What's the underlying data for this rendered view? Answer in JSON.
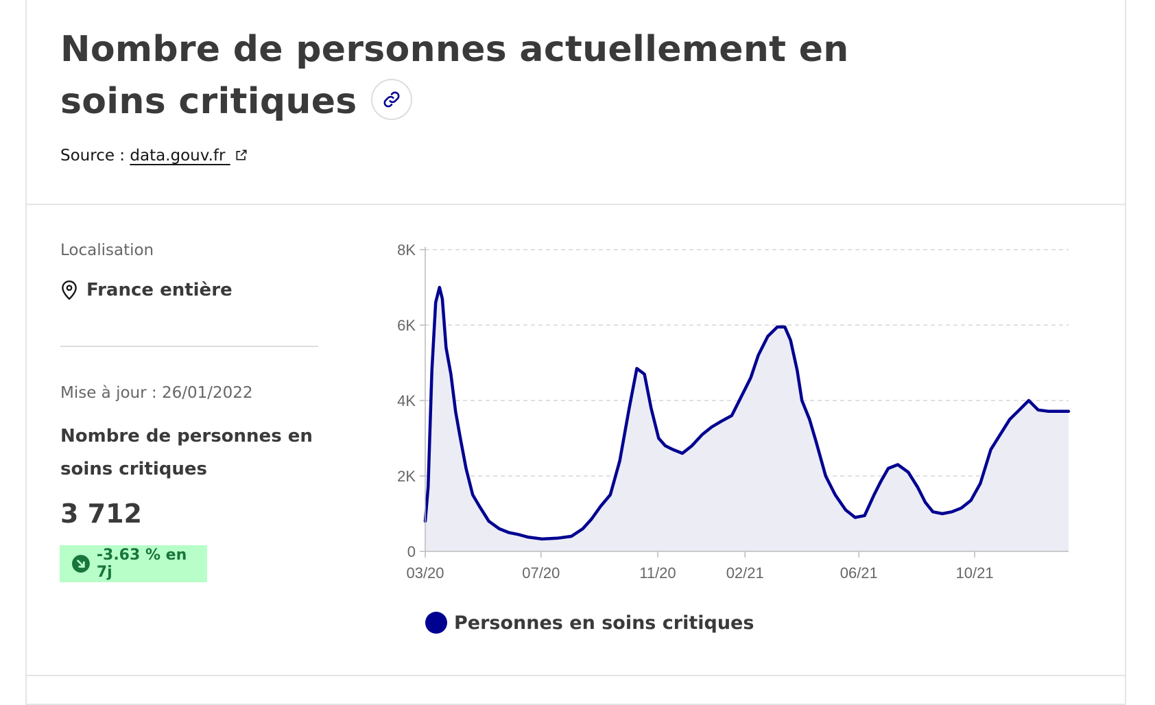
{
  "header": {
    "title": "Nombre de personnes actuellement en soins critiques",
    "link_icon": "link-icon",
    "source_prefix": "Source : ",
    "source_link": "data.gouv.fr",
    "source_icon": "external-link-icon"
  },
  "sidebar": {
    "location_label": "Localisation",
    "location_icon": "map-pin-icon",
    "location_value": "France entière",
    "updated": "Mise à jour : 26/01/2022",
    "indicator_label": "Nombre de personnes en soins critiques",
    "indicator_value": "3 712",
    "trend_icon": "arrow-down-right-icon",
    "trend_text": "-3.63 % en 7j"
  },
  "colors": {
    "series": "#000091",
    "area": "#ececf5",
    "trend_bg": "#b8fec9",
    "trend_text": "#18753c"
  },
  "chart_data": {
    "type": "area",
    "title": "",
    "xlabel": "",
    "ylabel": "",
    "ylim": [
      0,
      8000
    ],
    "yticks": [
      0,
      2000,
      4000,
      6000,
      8000
    ],
    "ytick_labels": [
      "0",
      "2K",
      "4K",
      "6K",
      "8K"
    ],
    "xtick_labels": [
      "03/20",
      "07/20",
      "11/20",
      "02/21",
      "06/21",
      "10/21"
    ],
    "grid": "horizontal dashed",
    "legend_position": "bottom",
    "series": [
      {
        "name": "Personnes en soins critiques",
        "x": [
          "2020-03-19",
          "2020-03-22",
          "2020-03-26",
          "2020-03-30",
          "2020-04-03",
          "2020-04-06",
          "2020-04-10",
          "2020-04-15",
          "2020-04-20",
          "2020-04-25",
          "2020-05-01",
          "2020-05-08",
          "2020-05-15",
          "2020-05-25",
          "2020-06-05",
          "2020-06-15",
          "2020-06-25",
          "2020-07-05",
          "2020-07-20",
          "2020-08-05",
          "2020-08-20",
          "2020-09-01",
          "2020-09-10",
          "2020-09-20",
          "2020-09-30",
          "2020-10-10",
          "2020-10-20",
          "2020-10-28",
          "2020-11-05",
          "2020-11-12",
          "2020-11-16",
          "2020-11-20",
          "2020-11-27",
          "2020-12-05",
          "2020-12-15",
          "2020-12-25",
          "2021-01-05",
          "2021-01-15",
          "2021-01-25",
          "2021-02-05",
          "2021-02-15",
          "2021-02-25",
          "2021-03-05",
          "2021-03-15",
          "2021-03-25",
          "2021-04-02",
          "2021-04-08",
          "2021-04-15",
          "2021-04-20",
          "2021-04-28",
          "2021-05-05",
          "2021-05-15",
          "2021-05-25",
          "2021-06-05",
          "2021-06-15",
          "2021-06-25",
          "2021-07-05",
          "2021-07-12",
          "2021-07-20",
          "2021-07-30",
          "2021-08-10",
          "2021-08-20",
          "2021-08-28",
          "2021-09-05",
          "2021-09-15",
          "2021-09-25",
          "2021-10-05",
          "2021-10-15",
          "2021-10-25",
          "2021-11-05",
          "2021-11-15",
          "2021-11-25",
          "2021-12-05",
          "2021-12-15",
          "2021-12-25",
          "2022-01-05",
          "2022-01-10",
          "2022-01-15",
          "2022-01-20",
          "2022-01-26"
        ],
        "values": [
          800,
          1700,
          4800,
          6600,
          7000,
          6700,
          5400,
          4700,
          3700,
          3000,
          2200,
          1500,
          1200,
          800,
          600,
          500,
          450,
          380,
          330,
          350,
          400,
          600,
          850,
          1200,
          1500,
          2400,
          3800,
          4850,
          4700,
          3800,
          3400,
          3000,
          2800,
          2700,
          2600,
          2800,
          3100,
          3300,
          3450,
          3600,
          4100,
          4600,
          5200,
          5700,
          5950,
          5950,
          5600,
          4800,
          4000,
          3500,
          2900,
          2000,
          1500,
          1100,
          900,
          950,
          1500,
          1850,
          2200,
          2300,
          2100,
          1700,
          1300,
          1050,
          1000,
          1050,
          1150,
          1350,
          1800,
          2700,
          3100,
          3500,
          3750,
          4000,
          3750,
          3712,
          3712,
          3712,
          3712,
          3712
        ]
      }
    ]
  }
}
